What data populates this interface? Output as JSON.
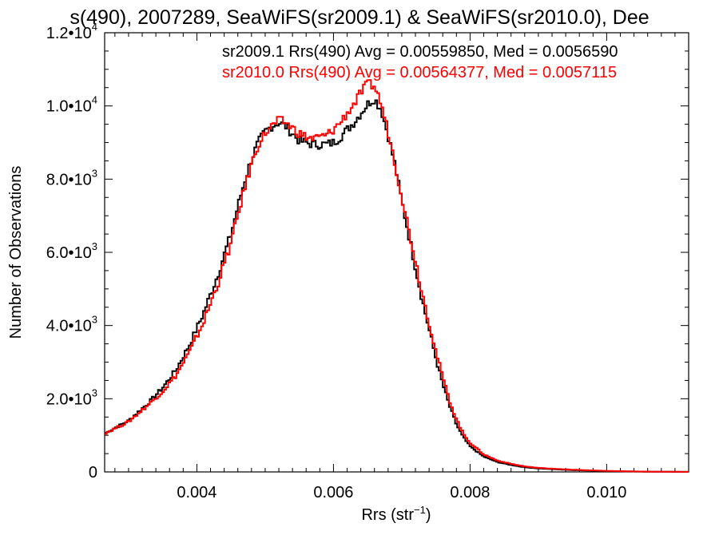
{
  "chart_data": {
    "type": "line",
    "step": true,
    "title": "s(490), 2007289, SeaWiFS(sr2009.1) & SeaWiFS(sr2010.0), Dee",
    "xlabel": "Rrs (str",
    "xlabel_sup": "−1",
    "xlabel_tail": ")",
    "ylabel": "Number of Observations",
    "xlim": [
      0.00265,
      0.0112
    ],
    "ylim": [
      0,
      12000
    ],
    "x_ticks": [
      {
        "value": 0.004,
        "label": "0.004"
      },
      {
        "value": 0.006,
        "label": "0.006"
      },
      {
        "value": 0.008,
        "label": "0.008"
      },
      {
        "value": 0.01,
        "label": "0.010"
      }
    ],
    "y_ticks": [
      {
        "value": 0,
        "mantissa": "0",
        "exp": ""
      },
      {
        "value": 2000,
        "mantissa": "2.0•10",
        "exp": "3"
      },
      {
        "value": 4000,
        "mantissa": "4.0•10",
        "exp": "3"
      },
      {
        "value": 6000,
        "mantissa": "6.0•10",
        "exp": "3"
      },
      {
        "value": 8000,
        "mantissa": "8.0•10",
        "exp": "3"
      },
      {
        "value": 10000,
        "mantissa": "1.0•10",
        "exp": "4"
      },
      {
        "value": 12000,
        "mantissa": "1.2•10",
        "exp": "4"
      }
    ],
    "legend_placement": "top-right",
    "series": [
      {
        "name": "sr2009.1 Rrs(490) Avg = 0.00559850, Med = 0.0056590",
        "color": "#000000",
        "points": [
          [
            0.00265,
            1050
          ],
          [
            0.003,
            1400
          ],
          [
            0.0033,
            1900
          ],
          [
            0.0035,
            2300
          ],
          [
            0.0037,
            2800
          ],
          [
            0.0039,
            3500
          ],
          [
            0.0041,
            4350
          ],
          [
            0.0043,
            5350
          ],
          [
            0.0045,
            6500
          ],
          [
            0.0046,
            7250
          ],
          [
            0.0047,
            7950
          ],
          [
            0.0048,
            8550
          ],
          [
            0.0049,
            9000
          ],
          [
            0.005,
            9300
          ],
          [
            0.0051,
            9450
          ],
          [
            0.0052,
            9550
          ],
          [
            0.0053,
            9450
          ],
          [
            0.0054,
            9250
          ],
          [
            0.0055,
            9050
          ],
          [
            0.0056,
            9000
          ],
          [
            0.0057,
            8950
          ],
          [
            0.0058,
            8950
          ],
          [
            0.0059,
            8950
          ],
          [
            0.006,
            9000
          ],
          [
            0.0061,
            9150
          ],
          [
            0.0062,
            9350
          ],
          [
            0.0063,
            9550
          ],
          [
            0.0064,
            9800
          ],
          [
            0.0065,
            10050
          ],
          [
            0.0066,
            10200
          ],
          [
            0.0067,
            9900
          ],
          [
            0.0068,
            9200
          ],
          [
            0.0069,
            8400
          ],
          [
            0.007,
            7400
          ],
          [
            0.0071,
            6500
          ],
          [
            0.0072,
            5600
          ],
          [
            0.0073,
            4700
          ],
          [
            0.0074,
            3900
          ],
          [
            0.0075,
            3100
          ],
          [
            0.0076,
            2400
          ],
          [
            0.0077,
            1800
          ],
          [
            0.0078,
            1300
          ],
          [
            0.0079,
            950
          ],
          [
            0.008,
            700
          ],
          [
            0.0082,
            420
          ],
          [
            0.0084,
            270
          ],
          [
            0.0086,
            190
          ],
          [
            0.0088,
            130
          ],
          [
            0.009,
            95
          ],
          [
            0.0095,
            50
          ],
          [
            0.01,
            22
          ],
          [
            0.0105,
            8
          ],
          [
            0.011,
            3
          ],
          [
            0.0112,
            2
          ]
        ]
      },
      {
        "name": "sr2010.0 Rrs(490) Avg = 0.00564377, Med = 0.0057115",
        "color": "#ff0000",
        "points": [
          [
            0.00265,
            1050
          ],
          [
            0.003,
            1370
          ],
          [
            0.0033,
            1850
          ],
          [
            0.0035,
            2200
          ],
          [
            0.0037,
            2650
          ],
          [
            0.0039,
            3300
          ],
          [
            0.0041,
            4100
          ],
          [
            0.0043,
            5100
          ],
          [
            0.0045,
            6250
          ],
          [
            0.0046,
            7000
          ],
          [
            0.0047,
            7750
          ],
          [
            0.0048,
            8400
          ],
          [
            0.0049,
            8950
          ],
          [
            0.005,
            9250
          ],
          [
            0.0051,
            9450
          ],
          [
            0.0052,
            9600
          ],
          [
            0.0053,
            9550
          ],
          [
            0.0054,
            9400
          ],
          [
            0.0055,
            9250
          ],
          [
            0.0056,
            9150
          ],
          [
            0.0057,
            9100
          ],
          [
            0.0058,
            9150
          ],
          [
            0.0059,
            9200
          ],
          [
            0.006,
            9350
          ],
          [
            0.0061,
            9550
          ],
          [
            0.0062,
            9800
          ],
          [
            0.0063,
            10050
          ],
          [
            0.0064,
            10350
          ],
          [
            0.0065,
            10600
          ],
          [
            0.0066,
            10550
          ],
          [
            0.0067,
            10050
          ],
          [
            0.0068,
            9300
          ],
          [
            0.0069,
            8450
          ],
          [
            0.007,
            7550
          ],
          [
            0.0071,
            6650
          ],
          [
            0.0072,
            5800
          ],
          [
            0.0073,
            4900
          ],
          [
            0.0074,
            4100
          ],
          [
            0.0075,
            3300
          ],
          [
            0.0076,
            2600
          ],
          [
            0.0077,
            1950
          ],
          [
            0.0078,
            1450
          ],
          [
            0.0079,
            1050
          ],
          [
            0.008,
            800
          ],
          [
            0.0082,
            480
          ],
          [
            0.0084,
            310
          ],
          [
            0.0086,
            220
          ],
          [
            0.0088,
            150
          ],
          [
            0.009,
            110
          ],
          [
            0.0095,
            60
          ],
          [
            0.01,
            28
          ],
          [
            0.0105,
            10
          ],
          [
            0.011,
            4
          ],
          [
            0.0112,
            2
          ]
        ]
      }
    ]
  }
}
